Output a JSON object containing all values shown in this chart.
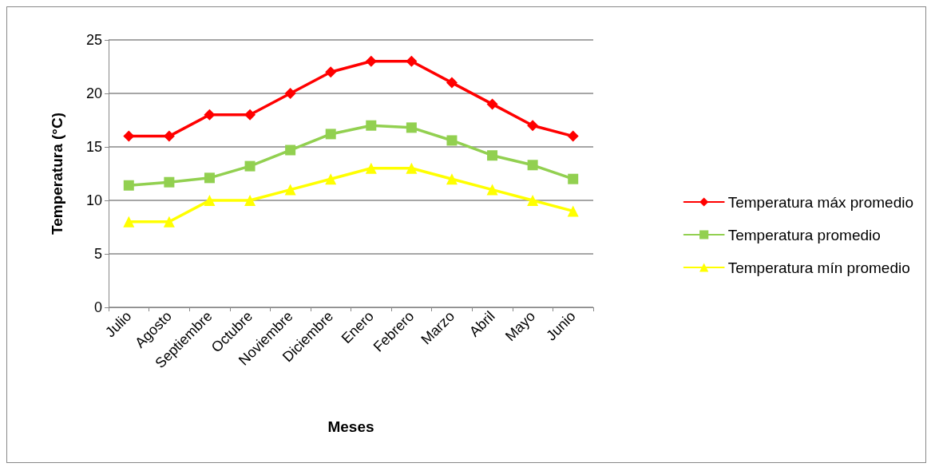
{
  "chart_data": {
    "type": "line",
    "xlabel": "Meses",
    "ylabel": "Temperatura (°C)",
    "categories": [
      "Julio",
      "Agosto",
      "Septiembre",
      "Octubre",
      "Noviembre",
      "Diciembre",
      "Enero",
      "Febrero",
      "Marzo",
      "Abril",
      "Mayo",
      "Junio"
    ],
    "series": [
      {
        "name": "Temperatura máx promedio",
        "color": "#ff0000",
        "marker": "diamond",
        "values": [
          16,
          16,
          18,
          18,
          20,
          22,
          23,
          23,
          21,
          19,
          17,
          16
        ]
      },
      {
        "name": "Temperatura promedio",
        "color": "#92d050",
        "marker": "square",
        "values": [
          11.4,
          11.7,
          12.1,
          13.2,
          14.7,
          16.2,
          17.0,
          16.8,
          15.6,
          14.2,
          13.3,
          12.0
        ]
      },
      {
        "name": "Temperatura mín promedio",
        "color": "#ffff00",
        "marker": "triangle",
        "values": [
          8,
          8,
          10,
          10,
          11,
          12,
          13,
          13,
          12,
          11,
          10,
          9
        ]
      }
    ],
    "ylim": [
      0,
      25
    ],
    "yticks": [
      0,
      5,
      10,
      15,
      20,
      25
    ],
    "grid": "y",
    "legend": "right",
    "line_style": "solid"
  }
}
